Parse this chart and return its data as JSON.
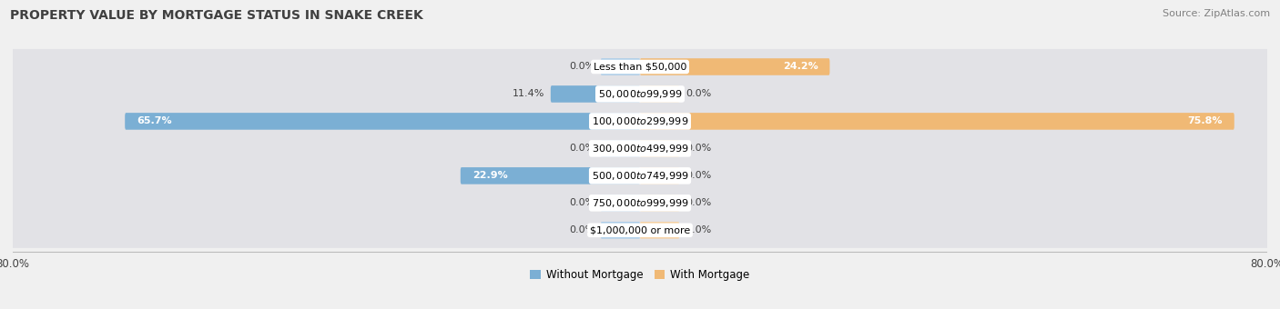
{
  "title": "PROPERTY VALUE BY MORTGAGE STATUS IN SNAKE CREEK",
  "source": "Source: ZipAtlas.com",
  "categories": [
    "Less than $50,000",
    "$50,000 to $99,999",
    "$100,000 to $299,999",
    "$300,000 to $499,999",
    "$500,000 to $749,999",
    "$750,000 to $999,999",
    "$1,000,000 or more"
  ],
  "without_mortgage": [
    0.0,
    11.4,
    65.7,
    0.0,
    22.9,
    0.0,
    0.0
  ],
  "with_mortgage": [
    24.2,
    0.0,
    75.8,
    0.0,
    0.0,
    0.0,
    0.0
  ],
  "color_without": "#7bafd4",
  "color_with": "#f0b975",
  "color_without_stub": "#aacce8",
  "color_with_stub": "#f5d0a0",
  "xlim": 80.0,
  "stub_size": 5.0,
  "row_bg_color": "#e2e2e6",
  "background_color": "#f0f0f0",
  "title_color": "#404040",
  "source_color": "#808080",
  "legend_label_without": "Without Mortgage",
  "legend_label_with": "With Mortgage",
  "title_fontsize": 10,
  "source_fontsize": 8,
  "label_fontsize": 8,
  "category_fontsize": 8
}
